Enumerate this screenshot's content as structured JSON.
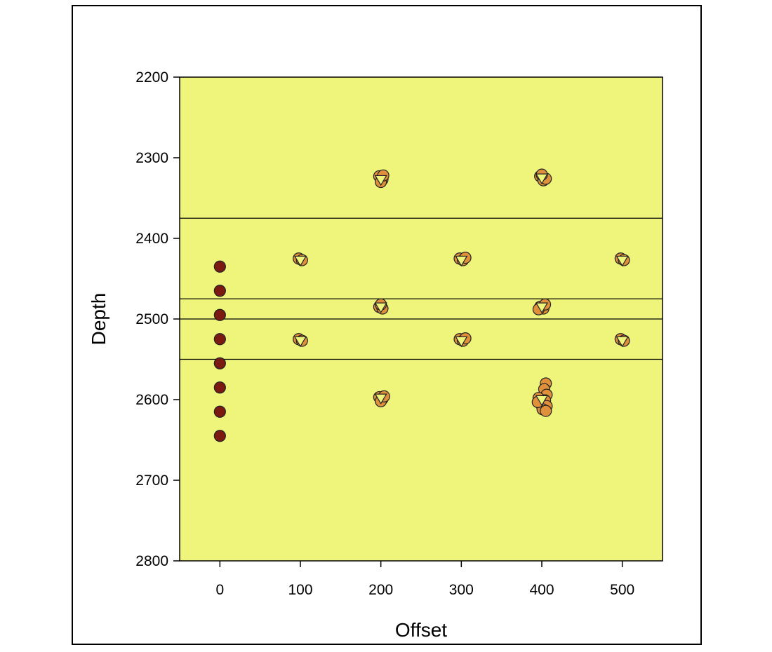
{
  "chart_data": {
    "type": "scatter",
    "title": "",
    "xlabel": "Offset",
    "ylabel": "Depth",
    "xlim": [
      -50,
      550
    ],
    "ylim": [
      2200,
      2800
    ],
    "y_inverted": true,
    "grid": false,
    "plot_background": "#eef57a",
    "xticks": [
      "0",
      "100",
      "200",
      "300",
      "400",
      "500"
    ],
    "xtick_values": [
      0,
      100,
      200,
      300,
      400,
      500
    ],
    "yticks": [
      "2200",
      "2300",
      "2400",
      "2500",
      "2600",
      "2700",
      "2800"
    ],
    "ytick_values": [
      2200,
      2300,
      2400,
      2500,
      2600,
      2700,
      2800
    ],
    "horizontal_lines": [
      2375,
      2475,
      2500,
      2550
    ],
    "series": [
      {
        "marker": "circle",
        "color": "#7a1a10",
        "points": [
          [
            0,
            2435
          ],
          [
            0,
            2465
          ],
          [
            0,
            2495
          ],
          [
            0,
            2525
          ],
          [
            0,
            2555
          ],
          [
            0,
            2585
          ],
          [
            0,
            2615
          ],
          [
            0,
            2645
          ]
        ]
      },
      {
        "marker": "circle",
        "color": "#e0903a",
        "points": [
          [
            198,
            2323
          ],
          [
            202,
            2327
          ],
          [
            200,
            2330
          ],
          [
            203,
            2322
          ],
          [
            398,
            2323
          ],
          [
            402,
            2328
          ],
          [
            405,
            2326
          ],
          [
            400,
            2321
          ],
          [
            98,
            2425
          ],
          [
            102,
            2427
          ],
          [
            298,
            2425
          ],
          [
            302,
            2427
          ],
          [
            305,
            2424
          ],
          [
            498,
            2425
          ],
          [
            502,
            2427
          ],
          [
            198,
            2485
          ],
          [
            202,
            2487
          ],
          [
            200,
            2482
          ],
          [
            398,
            2485
          ],
          [
            402,
            2487
          ],
          [
            396,
            2488
          ],
          [
            404,
            2482
          ],
          [
            98,
            2525
          ],
          [
            102,
            2527
          ],
          [
            298,
            2525
          ],
          [
            302,
            2527
          ],
          [
            305,
            2524
          ],
          [
            498,
            2525
          ],
          [
            502,
            2527
          ],
          [
            198,
            2597
          ],
          [
            202,
            2599
          ],
          [
            200,
            2602
          ],
          [
            204,
            2596
          ],
          [
            405,
            2580
          ],
          [
            403,
            2587
          ],
          [
            406,
            2594
          ],
          [
            396,
            2598
          ],
          [
            404,
            2601
          ],
          [
            399,
            2606
          ],
          [
            406,
            2608
          ],
          [
            401,
            2612
          ],
          [
            405,
            2614
          ],
          [
            395,
            2603
          ]
        ]
      },
      {
        "marker": "triangle-down",
        "color": "#eef57a",
        "points": [
          [
            200,
            2327
          ],
          [
            400,
            2325
          ],
          [
            100,
            2427
          ],
          [
            300,
            2427
          ],
          [
            500,
            2427
          ],
          [
            200,
            2485
          ],
          [
            400,
            2485
          ],
          [
            100,
            2527
          ],
          [
            300,
            2527
          ],
          [
            500,
            2527
          ],
          [
            200,
            2598
          ],
          [
            400,
            2600
          ]
        ]
      }
    ]
  }
}
